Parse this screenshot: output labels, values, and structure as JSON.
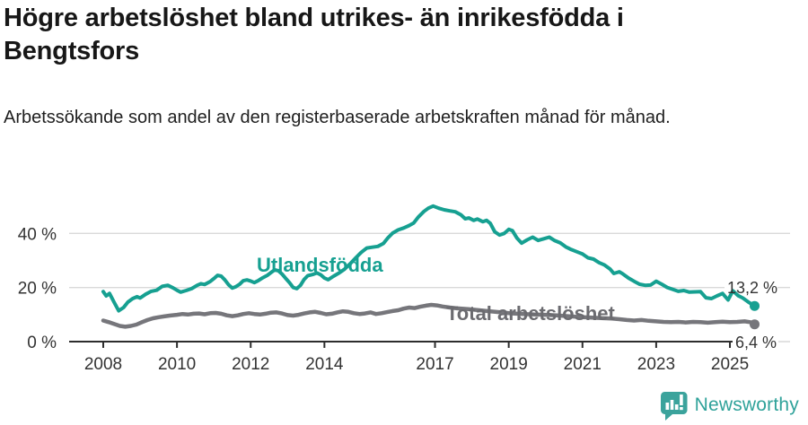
{
  "header": {
    "title": "Högre arbetslöshet bland utrikes- än inrikesfödda i Bengtsfors",
    "subtitle": "Arbetssökande som andel av den registerbaserade arbetskraften månad för månad."
  },
  "chart_data": {
    "type": "line",
    "title": "Högre arbetslöshet bland utrikes- än inrikesfödda i Bengtsfors",
    "subtitle": "Arbetssökande som andel av den registerbaserade arbetskraften månad för månad.",
    "xlabel": "",
    "ylabel": "",
    "grid": true,
    "legend_position": "inline",
    "xlim": [
      2007.05,
      2026.6
    ],
    "ylim": [
      0,
      57
    ],
    "x_ticks": [
      2008,
      2010,
      2012,
      2014,
      2017,
      2019,
      2021,
      2023,
      2025
    ],
    "y_ticks": [
      0,
      20,
      40
    ],
    "y_tick_labels": [
      "0 %",
      "20 %",
      "40 %"
    ],
    "series": [
      {
        "name": "Utlandsfödda",
        "color": "#16a091",
        "end_value": 13.2,
        "end_label": "13,2 %",
        "points": [
          [
            2008.0,
            18.5
          ],
          [
            2008.08,
            16.9
          ],
          [
            2008.17,
            17.8
          ],
          [
            2008.3,
            14.4
          ],
          [
            2008.42,
            11.4
          ],
          [
            2008.55,
            12.6
          ],
          [
            2008.67,
            14.6
          ],
          [
            2008.8,
            15.9
          ],
          [
            2008.92,
            16.6
          ],
          [
            2009.0,
            16.1
          ],
          [
            2009.15,
            17.5
          ],
          [
            2009.3,
            18.6
          ],
          [
            2009.45,
            19.0
          ],
          [
            2009.6,
            20.4
          ],
          [
            2009.75,
            20.8
          ],
          [
            2009.9,
            19.8
          ],
          [
            2010.0,
            19.0
          ],
          [
            2010.1,
            18.3
          ],
          [
            2010.25,
            18.9
          ],
          [
            2010.4,
            19.6
          ],
          [
            2010.55,
            20.8
          ],
          [
            2010.65,
            21.4
          ],
          [
            2010.75,
            21.1
          ],
          [
            2010.9,
            22.2
          ],
          [
            2011.0,
            23.3
          ],
          [
            2011.1,
            24.5
          ],
          [
            2011.2,
            24.2
          ],
          [
            2011.3,
            22.8
          ],
          [
            2011.4,
            21.0
          ],
          [
            2011.5,
            19.8
          ],
          [
            2011.6,
            20.3
          ],
          [
            2011.7,
            21.2
          ],
          [
            2011.8,
            22.5
          ],
          [
            2011.9,
            22.8
          ],
          [
            2012.0,
            22.4
          ],
          [
            2012.1,
            21.8
          ],
          [
            2012.2,
            22.5
          ],
          [
            2012.3,
            23.4
          ],
          [
            2012.45,
            24.5
          ],
          [
            2012.55,
            25.5
          ],
          [
            2012.65,
            26.5
          ],
          [
            2012.75,
            26.2
          ],
          [
            2012.85,
            25.0
          ],
          [
            2012.95,
            23.4
          ],
          [
            2013.05,
            21.8
          ],
          [
            2013.15,
            20.0
          ],
          [
            2013.25,
            19.6
          ],
          [
            2013.35,
            20.8
          ],
          [
            2013.45,
            23.0
          ],
          [
            2013.55,
            24.4
          ],
          [
            2013.7,
            24.9
          ],
          [
            2013.8,
            25.4
          ],
          [
            2013.9,
            24.7
          ],
          [
            2014.0,
            23.5
          ],
          [
            2014.1,
            22.9
          ],
          [
            2014.25,
            24.2
          ],
          [
            2014.4,
            25.4
          ],
          [
            2014.55,
            26.8
          ],
          [
            2014.7,
            28.8
          ],
          [
            2014.85,
            31.0
          ],
          [
            2015.0,
            33.0
          ],
          [
            2015.15,
            34.6
          ],
          [
            2015.3,
            34.9
          ],
          [
            2015.45,
            35.2
          ],
          [
            2015.6,
            36.3
          ],
          [
            2015.72,
            38.3
          ],
          [
            2015.85,
            40.1
          ],
          [
            2016.0,
            41.3
          ],
          [
            2016.15,
            42.0
          ],
          [
            2016.3,
            42.9
          ],
          [
            2016.42,
            43.8
          ],
          [
            2016.55,
            46.1
          ],
          [
            2016.7,
            48.1
          ],
          [
            2016.82,
            49.3
          ],
          [
            2016.95,
            50.1
          ],
          [
            2017.1,
            49.3
          ],
          [
            2017.25,
            48.7
          ],
          [
            2017.4,
            48.3
          ],
          [
            2017.55,
            48.0
          ],
          [
            2017.7,
            46.9
          ],
          [
            2017.82,
            45.4
          ],
          [
            2017.92,
            45.7
          ],
          [
            2018.05,
            44.8
          ],
          [
            2018.15,
            45.3
          ],
          [
            2018.3,
            44.3
          ],
          [
            2018.4,
            44.8
          ],
          [
            2018.5,
            43.7
          ],
          [
            2018.62,
            40.6
          ],
          [
            2018.75,
            39.4
          ],
          [
            2018.88,
            40.0
          ],
          [
            2019.0,
            41.5
          ],
          [
            2019.1,
            41.0
          ],
          [
            2019.22,
            38.3
          ],
          [
            2019.35,
            36.4
          ],
          [
            2019.5,
            37.6
          ],
          [
            2019.65,
            38.6
          ],
          [
            2019.8,
            37.4
          ],
          [
            2019.95,
            38.0
          ],
          [
            2020.1,
            38.6
          ],
          [
            2020.25,
            37.3
          ],
          [
            2020.4,
            36.5
          ],
          [
            2020.55,
            35.0
          ],
          [
            2020.7,
            34.0
          ],
          [
            2020.85,
            33.2
          ],
          [
            2021.0,
            32.4
          ],
          [
            2021.15,
            31.0
          ],
          [
            2021.3,
            30.5
          ],
          [
            2021.45,
            29.2
          ],
          [
            2021.6,
            28.3
          ],
          [
            2021.75,
            26.8
          ],
          [
            2021.85,
            25.2
          ],
          [
            2022.0,
            25.8
          ],
          [
            2022.1,
            25.0
          ],
          [
            2022.25,
            23.5
          ],
          [
            2022.4,
            22.3
          ],
          [
            2022.55,
            21.2
          ],
          [
            2022.7,
            20.8
          ],
          [
            2022.85,
            20.9
          ],
          [
            2023.0,
            22.3
          ],
          [
            2023.15,
            21.2
          ],
          [
            2023.3,
            20.0
          ],
          [
            2023.45,
            19.3
          ],
          [
            2023.6,
            18.6
          ],
          [
            2023.75,
            18.9
          ],
          [
            2023.9,
            18.3
          ],
          [
            2024.05,
            18.4
          ],
          [
            2024.2,
            18.5
          ],
          [
            2024.35,
            16.2
          ],
          [
            2024.5,
            15.9
          ],
          [
            2024.65,
            16.9
          ],
          [
            2024.8,
            17.8
          ],
          [
            2024.95,
            15.4
          ],
          [
            2025.08,
            18.8
          ],
          [
            2025.22,
            17.0
          ],
          [
            2025.35,
            16.1
          ],
          [
            2025.5,
            14.6
          ],
          [
            2025.67,
            13.2
          ]
        ]
      },
      {
        "name": "Total arbetslöshet",
        "color": "#76767b",
        "end_value": 6.4,
        "end_label": "6,4 %",
        "points": [
          [
            2008.0,
            7.8
          ],
          [
            2008.15,
            7.2
          ],
          [
            2008.3,
            6.5
          ],
          [
            2008.45,
            5.8
          ],
          [
            2008.6,
            5.5
          ],
          [
            2008.75,
            5.8
          ],
          [
            2008.9,
            6.3
          ],
          [
            2009.05,
            7.2
          ],
          [
            2009.2,
            8.0
          ],
          [
            2009.35,
            8.6
          ],
          [
            2009.5,
            9.0
          ],
          [
            2009.65,
            9.3
          ],
          [
            2009.8,
            9.6
          ],
          [
            2010.0,
            9.9
          ],
          [
            2010.15,
            10.2
          ],
          [
            2010.3,
            10.0
          ],
          [
            2010.45,
            10.3
          ],
          [
            2010.6,
            10.4
          ],
          [
            2010.75,
            10.1
          ],
          [
            2010.9,
            10.5
          ],
          [
            2011.05,
            10.6
          ],
          [
            2011.2,
            10.3
          ],
          [
            2011.35,
            9.7
          ],
          [
            2011.5,
            9.4
          ],
          [
            2011.65,
            9.7
          ],
          [
            2011.8,
            10.2
          ],
          [
            2011.95,
            10.5
          ],
          [
            2012.1,
            10.2
          ],
          [
            2012.25,
            10.0
          ],
          [
            2012.4,
            10.3
          ],
          [
            2012.55,
            10.7
          ],
          [
            2012.7,
            10.8
          ],
          [
            2012.85,
            10.4
          ],
          [
            2013.0,
            9.8
          ],
          [
            2013.15,
            9.6
          ],
          [
            2013.3,
            9.9
          ],
          [
            2013.45,
            10.4
          ],
          [
            2013.6,
            10.8
          ],
          [
            2013.75,
            11.0
          ],
          [
            2013.9,
            10.6
          ],
          [
            2014.05,
            10.1
          ],
          [
            2014.2,
            10.3
          ],
          [
            2014.35,
            10.8
          ],
          [
            2014.5,
            11.2
          ],
          [
            2014.65,
            11.0
          ],
          [
            2014.8,
            10.5
          ],
          [
            2014.95,
            10.2
          ],
          [
            2015.1,
            10.4
          ],
          [
            2015.25,
            10.8
          ],
          [
            2015.4,
            10.2
          ],
          [
            2015.55,
            10.5
          ],
          [
            2015.7,
            10.9
          ],
          [
            2015.85,
            11.3
          ],
          [
            2016.0,
            11.6
          ],
          [
            2016.15,
            12.2
          ],
          [
            2016.3,
            12.6
          ],
          [
            2016.45,
            12.4
          ],
          [
            2016.6,
            12.9
          ],
          [
            2016.75,
            13.3
          ],
          [
            2016.9,
            13.6
          ],
          [
            2017.05,
            13.4
          ],
          [
            2017.2,
            13.0
          ],
          [
            2017.4,
            12.6
          ],
          [
            2017.6,
            12.3
          ],
          [
            2017.9,
            12.0
          ],
          [
            2018.2,
            11.6
          ],
          [
            2018.5,
            11.2
          ],
          [
            2018.8,
            10.8
          ],
          [
            2019.1,
            10.4
          ],
          [
            2019.4,
            10.2
          ],
          [
            2019.7,
            10.0
          ],
          [
            2020.0,
            9.9
          ],
          [
            2020.3,
            9.7
          ],
          [
            2020.6,
            9.4
          ],
          [
            2020.9,
            9.1
          ],
          [
            2021.2,
            8.9
          ],
          [
            2021.5,
            8.7
          ],
          [
            2021.8,
            8.5
          ],
          [
            2022.0,
            8.3
          ],
          [
            2022.2,
            8.0
          ],
          [
            2022.4,
            7.8
          ],
          [
            2022.6,
            8.0
          ],
          [
            2022.8,
            7.7
          ],
          [
            2023.0,
            7.5
          ],
          [
            2023.2,
            7.3
          ],
          [
            2023.4,
            7.2
          ],
          [
            2023.6,
            7.3
          ],
          [
            2023.8,
            7.1
          ],
          [
            2024.0,
            7.3
          ],
          [
            2024.2,
            7.2
          ],
          [
            2024.4,
            7.0
          ],
          [
            2024.6,
            7.2
          ],
          [
            2024.8,
            7.4
          ],
          [
            2025.0,
            7.2
          ],
          [
            2025.2,
            7.3
          ],
          [
            2025.4,
            7.5
          ],
          [
            2025.55,
            7.2
          ],
          [
            2025.67,
            6.4
          ]
        ]
      }
    ],
    "colors": {
      "grid": "#d9d9d9",
      "axis": "#2d2d2d",
      "tick_text": "#333333",
      "series_teal": "#16a091",
      "series_gray": "#76767b",
      "gray_label": "#6b6b70"
    }
  },
  "footer": {
    "brand": "Newsworthy",
    "brand_color": "#2fa29a",
    "logo_icon": "bar-chart-speech-bubble"
  }
}
